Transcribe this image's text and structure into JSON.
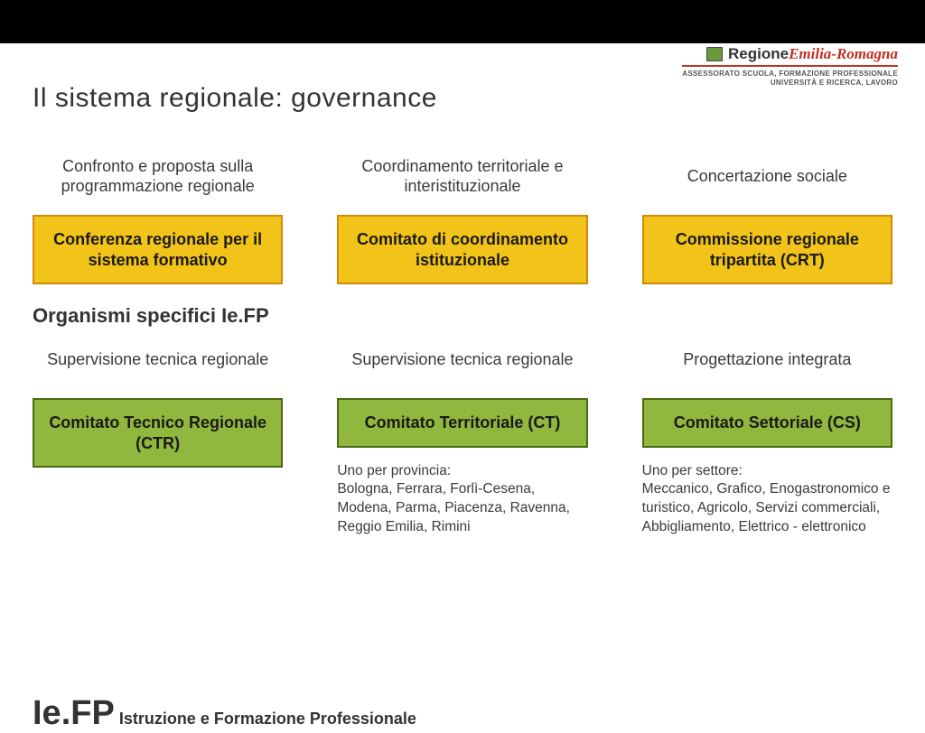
{
  "colors": {
    "topbar": "#000000",
    "yellow_fill": "#f2c318",
    "yellow_border": "#d18a0a",
    "green_fill": "#90b73e",
    "green_border": "#4a6a14",
    "text": "#3a3a3a",
    "logo_green": "#6a9a3a",
    "logo_red": "#c03020"
  },
  "title": "Il sistema regionale: governance",
  "logo": {
    "main_black": "Regione",
    "main_red": "Emilia-Romagna",
    "sub1": "ASSESSORATO SCUOLA, FORMAZIONE PROFESSIONALE",
    "sub2": "UNIVERSITÀ E RICERCA, LAVORO"
  },
  "row1": {
    "type": "infographic",
    "box_style": {
      "fill": "#f2c318",
      "border": "#d18a0a",
      "border_width": 2,
      "font_weight": "bold",
      "font_size": 18
    },
    "cols": [
      {
        "label": "Confronto e proposta sulla programmazione regionale",
        "box": "Conferenza regionale per il sistema formativo"
      },
      {
        "label": "Coordinamento territoriale  e interistituzionale",
        "box": "Comitato di coordinamento istituzionale"
      },
      {
        "label": "Concertazione sociale",
        "box": "Commissione  regionale tripartita  (CRT)"
      }
    ]
  },
  "section_heading": "Organismi specifici Ie.FP",
  "row2": {
    "type": "infographic",
    "box_style": {
      "fill": "#90b73e",
      "border": "#4a6a14",
      "border_width": 2,
      "font_weight": "bold",
      "font_size": 18
    },
    "cols": [
      {
        "label": "Supervisione tecnica regionale",
        "box": "Comitato Tecnico Regionale (CTR)",
        "note": ""
      },
      {
        "label": "Supervisione tecnica regionale",
        "box": "Comitato Territoriale  (CT)",
        "note": "Uno per provincia:\nBologna, Ferrara, Forlì-Cesena, Modena, Parma, Piacenza, Ravenna, Reggio Emilia, Rimini"
      },
      {
        "label": "Progettazione integrata",
        "box": "Comitato Settoriale  (CS)",
        "note": "Uno per settore:\nMeccanico, Grafico, Enogastronomico e turistico, Agricolo, Servizi commerciali, Abbigliamento, Elettrico - elettronico"
      }
    ]
  },
  "footer": {
    "big": "Ie.FP",
    "rest": " Istruzione e Formazione Professionale"
  }
}
